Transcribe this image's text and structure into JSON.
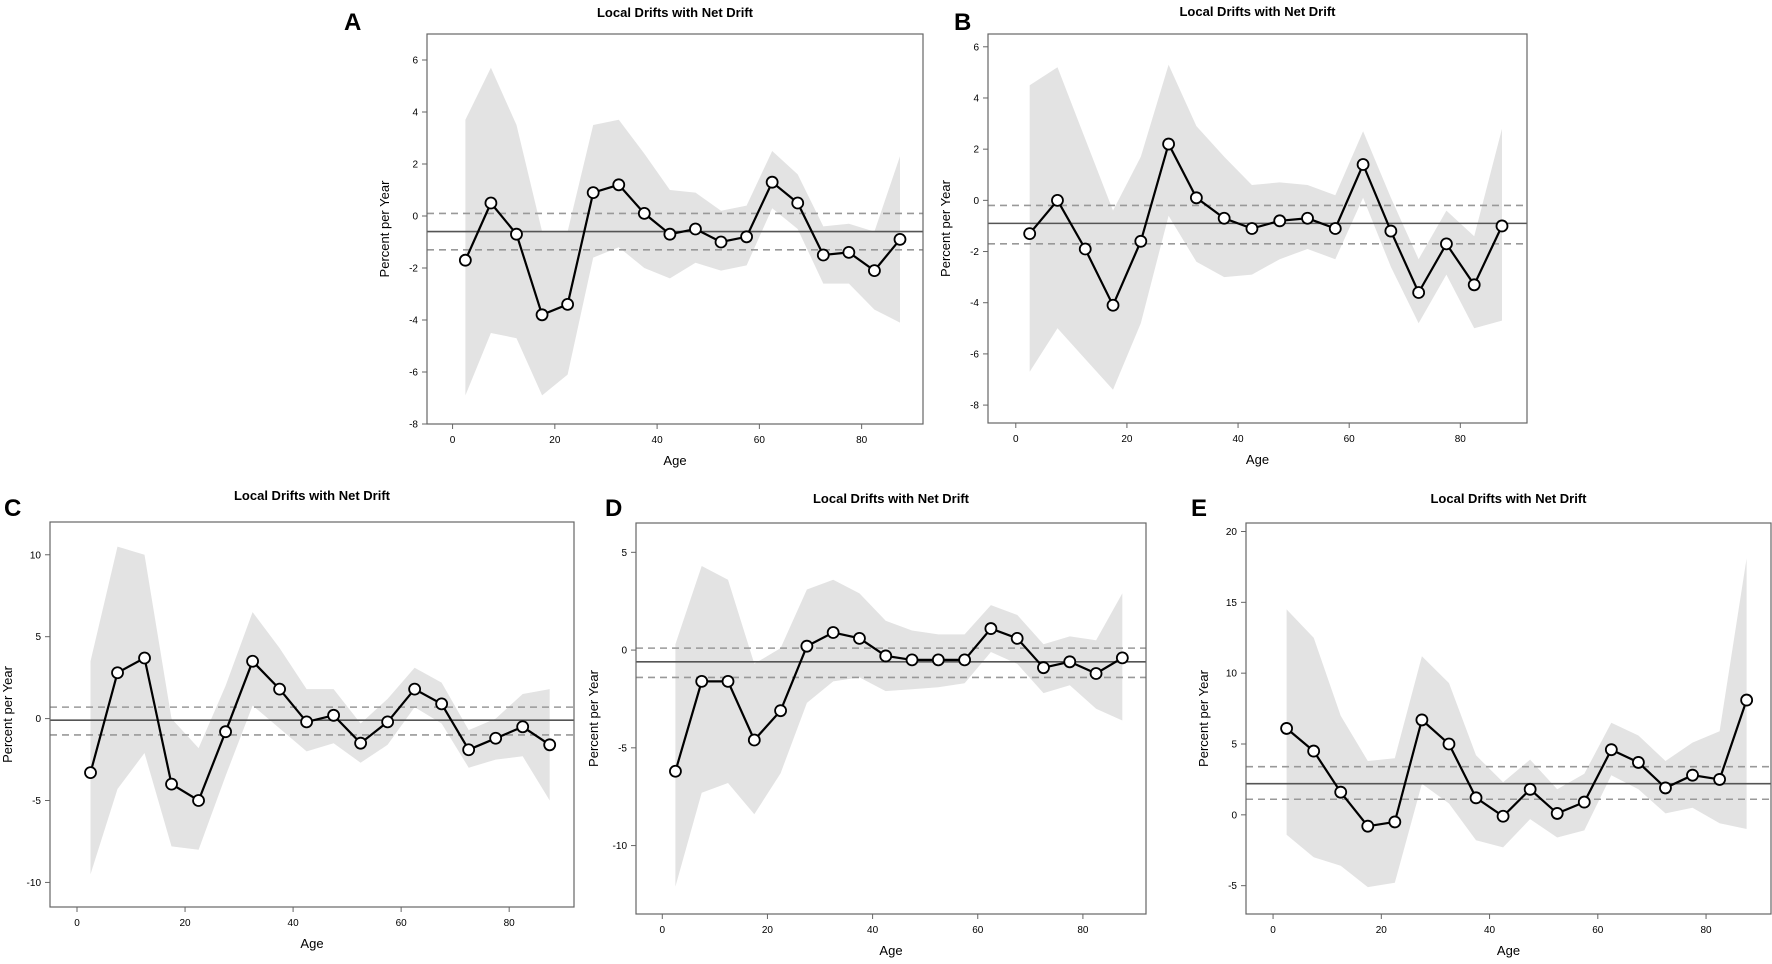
{
  "figure": {
    "background": "#ffffff"
  },
  "style": {
    "band_color": "#e3e3e3",
    "line_color": "#000000",
    "net_drift_color": "#555555",
    "ci_color": "#999999",
    "point_fill": "#ffffff"
  },
  "chart_data": [
    {
      "panel": "A",
      "type": "line",
      "title": "Local Drifts with Net Drift",
      "xlabel": "Age",
      "ylabel": "Percent per Year",
      "xlim": [
        -5,
        92
      ],
      "ylim": [
        -8,
        7
      ],
      "xticks": [
        0,
        20,
        40,
        60,
        80
      ],
      "yticks": [
        -8,
        -6,
        -4,
        -2,
        0,
        2,
        4,
        6
      ],
      "x": [
        2.5,
        7.5,
        12.5,
        17.5,
        22.5,
        27.5,
        32.5,
        37.5,
        42.5,
        47.5,
        52.5,
        57.5,
        62.5,
        67.5,
        72.5,
        77.5,
        82.5,
        87.5
      ],
      "values": [
        -1.7,
        0.5,
        -0.7,
        -3.8,
        -3.4,
        0.9,
        1.2,
        0.1,
        -0.7,
        -0.5,
        -1.0,
        -0.8,
        1.3,
        0.5,
        -1.5,
        -1.4,
        -2.1,
        -0.9
      ],
      "lower": [
        -6.9,
        -4.5,
        -4.7,
        -6.9,
        -6.1,
        -1.6,
        -1.2,
        -2.0,
        -2.4,
        -1.8,
        -2.1,
        -1.9,
        0.3,
        -0.5,
        -2.6,
        -2.6,
        -3.6,
        -4.1
      ],
      "upper": [
        3.7,
        5.7,
        3.5,
        -0.6,
        -0.6,
        3.5,
        3.7,
        2.4,
        1.0,
        0.9,
        0.2,
        0.4,
        2.5,
        1.6,
        -0.4,
        -0.3,
        -0.6,
        2.3
      ],
      "net_drift": -0.6,
      "net_drift_ci": [
        -1.3,
        0.1
      ]
    },
    {
      "panel": "B",
      "type": "line",
      "title": "Local Drifts with Net Drift",
      "xlabel": "Age",
      "ylabel": "Percent per Year",
      "xlim": [
        -5,
        92
      ],
      "ylim": [
        -8.7,
        6.5
      ],
      "xticks": [
        0,
        20,
        40,
        60,
        80
      ],
      "yticks": [
        -8,
        -6,
        -4,
        -2,
        0,
        2,
        4,
        6
      ],
      "x": [
        2.5,
        7.5,
        12.5,
        17.5,
        22.5,
        27.5,
        32.5,
        37.5,
        42.5,
        47.5,
        52.5,
        57.5,
        62.5,
        67.5,
        72.5,
        77.5,
        82.5,
        87.5
      ],
      "values": [
        -1.3,
        -0.0,
        -1.9,
        -4.1,
        -1.6,
        2.2,
        0.1,
        -0.7,
        -1.1,
        -0.8,
        -0.7,
        -1.1,
        1.4,
        -1.2,
        -3.6,
        -1.7,
        -3.3,
        -1.0
      ],
      "lower": [
        -6.7,
        -5.0,
        -6.2,
        -7.4,
        -4.8,
        -0.6,
        -2.4,
        -3.0,
        -2.9,
        -2.3,
        -1.9,
        -2.3,
        0.1,
        -2.6,
        -4.8,
        -2.9,
        -5.0,
        -4.7
      ],
      "upper": [
        4.5,
        5.2,
        2.4,
        -0.4,
        1.7,
        5.3,
        2.9,
        1.7,
        0.6,
        0.7,
        0.6,
        0.2,
        2.7,
        0.1,
        -2.3,
        -0.4,
        -1.4,
        2.8
      ],
      "net_drift": -0.9,
      "net_drift_ci": [
        -1.7,
        -0.2
      ]
    },
    {
      "panel": "C",
      "type": "line",
      "title": "Local Drifts with Net Drift",
      "xlabel": "Age",
      "ylabel": "Percent per Year",
      "xlim": [
        -5,
        92
      ],
      "ylim": [
        -11.5,
        12
      ],
      "xticks": [
        0,
        20,
        40,
        60,
        80
      ],
      "yticks": [
        -10,
        -5,
        0,
        5,
        10
      ],
      "x": [
        2.5,
        7.5,
        12.5,
        17.5,
        22.5,
        27.5,
        32.5,
        37.5,
        42.5,
        47.5,
        52.5,
        57.5,
        62.5,
        67.5,
        72.5,
        77.5,
        82.5,
        87.5
      ],
      "values": [
        -3.3,
        2.8,
        3.7,
        -4.0,
        -5.0,
        -0.8,
        3.5,
        1.8,
        -0.2,
        0.2,
        -1.5,
        -0.2,
        1.8,
        0.9,
        -1.9,
        -1.2,
        -0.5,
        -1.6
      ],
      "lower": [
        -9.5,
        -4.3,
        -2.1,
        -7.8,
        -8.0,
        -3.5,
        0.8,
        -0.6,
        -2.0,
        -1.5,
        -2.7,
        -1.6,
        0.7,
        -0.3,
        -3.0,
        -2.5,
        -2.3,
        -5.0
      ],
      "upper": [
        3.5,
        10.5,
        10.0,
        0.0,
        -1.8,
        2.0,
        6.5,
        4.3,
        1.8,
        1.8,
        -0.3,
        1.2,
        3.1,
        2.2,
        -0.7,
        0.0,
        1.5,
        1.8
      ],
      "net_drift": -0.1,
      "net_drift_ci": [
        -1.0,
        0.7
      ]
    },
    {
      "panel": "D",
      "type": "line",
      "title": "Local Drifts with Net Drift",
      "xlabel": "Age",
      "ylabel": "Percent per Year",
      "xlim": [
        -5,
        92
      ],
      "ylim": [
        -13.5,
        6.5
      ],
      "xticks": [
        0,
        20,
        40,
        60,
        80
      ],
      "yticks": [
        -10,
        -5,
        0,
        5
      ],
      "x": [
        2.5,
        7.5,
        12.5,
        17.5,
        22.5,
        27.5,
        32.5,
        37.5,
        42.5,
        47.5,
        52.5,
        57.5,
        62.5,
        67.5,
        72.5,
        77.5,
        82.5,
        87.5
      ],
      "values": [
        -6.2,
        -1.6,
        -1.6,
        -4.6,
        -3.1,
        0.2,
        0.9,
        0.6,
        -0.3,
        -0.5,
        -0.5,
        -0.5,
        1.1,
        0.6,
        -0.9,
        -0.6,
        -1.2,
        -0.4
      ],
      "lower": [
        -12.1,
        -7.3,
        -6.8,
        -8.4,
        -6.3,
        -2.7,
        -1.6,
        -1.4,
        -2.1,
        -2.0,
        -1.9,
        -1.7,
        -0.1,
        -0.7,
        -2.2,
        -1.8,
        -3.0,
        -3.6
      ],
      "upper": [
        0.3,
        4.3,
        3.6,
        -0.7,
        0.1,
        3.1,
        3.6,
        2.9,
        1.5,
        1.0,
        0.8,
        0.8,
        2.3,
        1.8,
        0.3,
        0.7,
        0.5,
        2.9
      ],
      "net_drift": -0.6,
      "net_drift_ci": [
        -1.4,
        0.1
      ]
    },
    {
      "panel": "E",
      "type": "line",
      "title": "Local Drifts with Net Drift",
      "xlabel": "Age",
      "ylabel": "Percent per Year",
      "xlim": [
        -5,
        92
      ],
      "ylim": [
        -7,
        20.6
      ],
      "xticks": [
        0,
        20,
        40,
        60,
        80
      ],
      "yticks": [
        -5,
        0,
        5,
        10,
        15,
        20
      ],
      "x": [
        2.5,
        7.5,
        12.5,
        17.5,
        22.5,
        27.5,
        32.5,
        37.5,
        42.5,
        47.5,
        52.5,
        57.5,
        62.5,
        67.5,
        72.5,
        77.5,
        82.5,
        87.5
      ],
      "values": [
        6.1,
        4.5,
        1.6,
        -0.8,
        -0.5,
        6.7,
        5.0,
        1.2,
        -0.1,
        1.8,
        0.1,
        0.9,
        4.6,
        3.7,
        1.9,
        2.8,
        2.5,
        8.1
      ],
      "lower": [
        -1.4,
        -3.0,
        -3.6,
        -5.1,
        -4.8,
        2.2,
        0.8,
        -1.8,
        -2.3,
        -0.3,
        -1.6,
        -1.1,
        2.8,
        1.8,
        0.1,
        0.5,
        -0.6,
        -1.0
      ],
      "upper": [
        14.5,
        12.5,
        7.0,
        3.8,
        4.0,
        11.2,
        9.3,
        4.2,
        2.3,
        3.9,
        1.8,
        2.9,
        6.5,
        5.6,
        3.8,
        5.1,
        5.9,
        18.1
      ],
      "net_drift": 2.2,
      "net_drift_ci": [
        1.1,
        3.4
      ]
    }
  ]
}
